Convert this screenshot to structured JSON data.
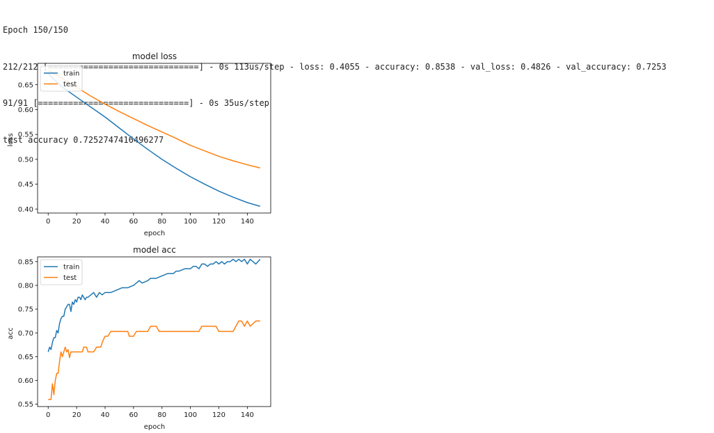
{
  "console": {
    "lines": [
      "Epoch 150/150",
      "212/212 [==============================] - 0s 113us/step - loss: 0.4055 - accuracy: 0.8538 - val_loss: 0.4826 - val_accuracy: 0.7253",
      "91/91 [==============================] - 0s 35us/step",
      "test accuracy 0.7252747416496277"
    ]
  },
  "colors": {
    "train": "#1f77b4",
    "test": "#ff7f0e"
  },
  "chart_data": [
    {
      "type": "line",
      "title": "model loss",
      "xlabel": "epoch",
      "ylabel": "loss",
      "xlim": [
        -7.45,
        156.45
      ],
      "ylim": [
        0.392,
        0.693
      ],
      "xticks": [
        0,
        20,
        40,
        60,
        80,
        100,
        120,
        140
      ],
      "xtick_labels": [
        "0",
        "20",
        "40",
        "60",
        "80",
        "100",
        "120",
        "140"
      ],
      "yticks": [
        0.4,
        0.45,
        0.5,
        0.55,
        0.6,
        0.65
      ],
      "ytick_labels": [
        "0.40",
        "0.45",
        "0.50",
        "0.55",
        "0.60",
        "0.65"
      ],
      "grid": false,
      "legend": "upper left",
      "series": [
        {
          "name": "train",
          "x": [
            0,
            10,
            20,
            30,
            40,
            50,
            60,
            70,
            80,
            90,
            100,
            110,
            120,
            130,
            140,
            149
          ],
          "y": [
            0.672,
            0.645,
            0.625,
            0.605,
            0.585,
            0.563,
            0.541,
            0.52,
            0.5,
            0.482,
            0.465,
            0.45,
            0.436,
            0.424,
            0.413,
            0.4055
          ]
        },
        {
          "name": "test",
          "x": [
            0,
            10,
            20,
            30,
            40,
            50,
            60,
            70,
            80,
            90,
            100,
            110,
            120,
            130,
            140,
            149
          ],
          "y": [
            0.679,
            0.663,
            0.645,
            0.627,
            0.611,
            0.596,
            0.582,
            0.568,
            0.555,
            0.542,
            0.528,
            0.517,
            0.506,
            0.497,
            0.489,
            0.4826
          ]
        }
      ]
    },
    {
      "type": "line",
      "title": "model acc",
      "xlabel": "epoch",
      "ylabel": "acc",
      "xlim": [
        -7.45,
        156.45
      ],
      "ylim": [
        0.545,
        0.86
      ],
      "xticks": [
        0,
        20,
        40,
        60,
        80,
        100,
        120,
        140
      ],
      "xtick_labels": [
        "0",
        "20",
        "40",
        "60",
        "80",
        "100",
        "120",
        "140"
      ],
      "yticks": [
        0.55,
        0.6,
        0.65,
        0.7,
        0.75,
        0.8,
        0.85
      ],
      "ytick_labels": [
        "0.55",
        "0.60",
        "0.65",
        "0.70",
        "0.75",
        "0.80",
        "0.85"
      ],
      "grid": false,
      "legend": "upper left",
      "series": [
        {
          "name": "train",
          "x": [
            0,
            1,
            2,
            3,
            4,
            5,
            6,
            7,
            8,
            9,
            10,
            11,
            12,
            13,
            14,
            15,
            16,
            17,
            18,
            19,
            20,
            21,
            22,
            23,
            24,
            25,
            26,
            27,
            28,
            30,
            32,
            34,
            36,
            38,
            40,
            44,
            48,
            52,
            56,
            60,
            62,
            64,
            66,
            70,
            72,
            76,
            80,
            84,
            88,
            90,
            92,
            96,
            100,
            102,
            104,
            106,
            108,
            110,
            112,
            114,
            116,
            118,
            120,
            122,
            124,
            126,
            128,
            130,
            132,
            134,
            136,
            138,
            140,
            142,
            144,
            146,
            149
          ],
          "y": [
            0.66,
            0.67,
            0.665,
            0.68,
            0.69,
            0.69,
            0.705,
            0.7,
            0.72,
            0.73,
            0.735,
            0.735,
            0.75,
            0.755,
            0.76,
            0.76,
            0.745,
            0.765,
            0.76,
            0.77,
            0.765,
            0.775,
            0.775,
            0.77,
            0.78,
            0.775,
            0.77,
            0.775,
            0.775,
            0.78,
            0.785,
            0.775,
            0.785,
            0.78,
            0.785,
            0.785,
            0.79,
            0.795,
            0.795,
            0.8,
            0.805,
            0.81,
            0.805,
            0.81,
            0.815,
            0.815,
            0.82,
            0.825,
            0.825,
            0.83,
            0.83,
            0.835,
            0.835,
            0.84,
            0.84,
            0.835,
            0.845,
            0.845,
            0.84,
            0.845,
            0.845,
            0.85,
            0.845,
            0.85,
            0.845,
            0.85,
            0.85,
            0.855,
            0.85,
            0.855,
            0.85,
            0.855,
            0.845,
            0.855,
            0.85,
            0.845,
            0.855
          ]
        },
        {
          "name": "test",
          "x": [
            0,
            2,
            3,
            4,
            5,
            6,
            7,
            8,
            9,
            10,
            11,
            12,
            13,
            14,
            15,
            16,
            17,
            18,
            20,
            24,
            25,
            27,
            28,
            30,
            32,
            34,
            36,
            37,
            38,
            40,
            42,
            44,
            46,
            48,
            50,
            52,
            54,
            56,
            57,
            58,
            60,
            62,
            64,
            66,
            70,
            72,
            74,
            76,
            78,
            80,
            84,
            88,
            92,
            96,
            100,
            104,
            106,
            108,
            110,
            112,
            116,
            118,
            120,
            124,
            128,
            130,
            132,
            134,
            136,
            138,
            140,
            142,
            146,
            149
          ],
          "y": [
            0.56,
            0.56,
            0.593,
            0.57,
            0.6,
            0.615,
            0.615,
            0.64,
            0.66,
            0.65,
            0.66,
            0.67,
            0.66,
            0.665,
            0.648,
            0.66,
            0.66,
            0.66,
            0.66,
            0.66,
            0.67,
            0.67,
            0.66,
            0.66,
            0.66,
            0.67,
            0.67,
            0.67,
            0.68,
            0.693,
            0.693,
            0.703,
            0.703,
            0.703,
            0.703,
            0.703,
            0.703,
            0.703,
            0.693,
            0.693,
            0.693,
            0.703,
            0.703,
            0.703,
            0.703,
            0.714,
            0.714,
            0.714,
            0.703,
            0.703,
            0.703,
            0.703,
            0.703,
            0.703,
            0.703,
            0.703,
            0.703,
            0.714,
            0.714,
            0.714,
            0.714,
            0.714,
            0.703,
            0.703,
            0.703,
            0.703,
            0.714,
            0.725,
            0.725,
            0.714,
            0.725,
            0.714,
            0.725,
            0.725
          ]
        }
      ]
    }
  ]
}
